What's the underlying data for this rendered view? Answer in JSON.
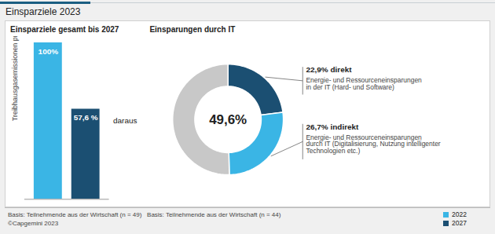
{
  "title": "Einsparziele 2023",
  "annotations": [
    "Basis: Teilnehmende aus der Wirtschaft (n = 49)   Basis: Teilnehmende aus der Wirtschaft (n = 44)",
    "©Capgemini 2023"
  ],
  "chart_data": [
    {
      "type": "bar",
      "title": "Einsparziele gesamt bis 2027",
      "ylabel": "Treibhausgasemissionen pro Jahr",
      "categories": [
        "2022",
        "2027"
      ],
      "values": [
        100,
        57.6
      ],
      "value_labels": [
        "100%",
        "57,6 %"
      ],
      "colors": [
        "#3ab5e5",
        "#1b4f72"
      ],
      "ylim": [
        0,
        100
      ],
      "tick_labels": false,
      "data_labels": true,
      "legend": "bottom right",
      "annotations": [
        "daraus"
      ]
    },
    {
      "type": "pie",
      "title": "Einsparungen durch IT",
      "categories": [
        "22,9% direkt",
        "26,7% indirekt",
        null
      ],
      "values": [
        22.9,
        26.7,
        50.4
      ],
      "colors": [
        "#1b4f72",
        "#3ab5e5",
        "#c8c8c8"
      ],
      "annotations": [
        "49,6%",
        "Energie- und Ressourceneinsparungen\nin der IT (Hard- und Software)",
        "Energie- und Ressourceneinsparungen\ndurch IT (Digitalisierung, Nutzung intelligenter\nTechnologien etc.)"
      ]
    }
  ]
}
